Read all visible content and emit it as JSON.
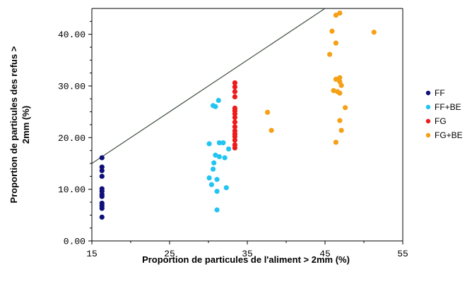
{
  "chart_data": {
    "type": "scatter",
    "title": "",
    "xlabel": "Proportion de particules de l'aliment > 2mm (%)",
    "ylabel_lines": [
      "Proportion de particules des refus >",
      "2mm (%)"
    ],
    "xlim": [
      15,
      55
    ],
    "ylim": [
      0,
      45
    ],
    "x_ticks": [
      15,
      25,
      35,
      45,
      55
    ],
    "x_tick_labels": [
      "15",
      "25",
      "35",
      "45",
      "55"
    ],
    "y_ticks": [
      0,
      10,
      20,
      30,
      40
    ],
    "y_tick_labels": [
      "0.00",
      "10.00",
      "20.00",
      "30.00",
      "40.00"
    ],
    "grid": false,
    "legend_position": "right",
    "reference_line": {
      "type": "y=x",
      "from": [
        15,
        15
      ],
      "to": [
        45,
        45
      ],
      "color": "#4b5a4b"
    },
    "series": [
      {
        "name": "FF",
        "color": "#10107a",
        "points": [
          [
            16.3,
            16.1
          ],
          [
            16.3,
            14.3
          ],
          [
            16.3,
            13.6
          ],
          [
            16.3,
            12.5
          ],
          [
            16.3,
            10.1
          ],
          [
            16.3,
            9.6
          ],
          [
            16.3,
            9.0
          ],
          [
            16.3,
            8.6
          ],
          [
            16.3,
            7.3
          ],
          [
            16.3,
            6.8
          ],
          [
            16.3,
            6.3
          ],
          [
            16.3,
            4.6
          ]
        ]
      },
      {
        "name": "FF+BE",
        "color": "#22c4f2",
        "points": [
          [
            31.3,
            27.2
          ],
          [
            30.9,
            26.0
          ],
          [
            30.6,
            26.2
          ],
          [
            30.1,
            18.8
          ],
          [
            31.4,
            19.0
          ],
          [
            31.9,
            19.0
          ],
          [
            32.6,
            17.8
          ],
          [
            30.9,
            16.6
          ],
          [
            31.4,
            16.3
          ],
          [
            32.1,
            16.1
          ],
          [
            30.7,
            15.1
          ],
          [
            30.6,
            13.9
          ],
          [
            30.1,
            12.2
          ],
          [
            31.1,
            11.9
          ],
          [
            30.4,
            10.9
          ],
          [
            32.3,
            10.3
          ],
          [
            31.1,
            9.6
          ],
          [
            31.1,
            6.0
          ]
        ]
      },
      {
        "name": "FG",
        "color": "#f01a1a",
        "points": [
          [
            33.4,
            30.6
          ],
          [
            33.4,
            29.8
          ],
          [
            33.4,
            28.9
          ],
          [
            33.4,
            27.9
          ],
          [
            33.4,
            25.7
          ],
          [
            33.4,
            25.2
          ],
          [
            33.4,
            24.6
          ],
          [
            33.4,
            23.9
          ],
          [
            33.4,
            23.0
          ],
          [
            33.4,
            22.1
          ],
          [
            33.4,
            21.3
          ],
          [
            33.4,
            20.7
          ],
          [
            33.4,
            20.2
          ],
          [
            33.4,
            19.5
          ],
          [
            33.4,
            18.6
          ],
          [
            33.4,
            18.0
          ]
        ]
      },
      {
        "name": "FG+BE",
        "color": "#f5a015",
        "points": [
          [
            46.4,
            43.7
          ],
          [
            46.9,
            44.1
          ],
          [
            45.9,
            40.6
          ],
          [
            46.4,
            38.3
          ],
          [
            51.3,
            40.4
          ],
          [
            45.6,
            36.1
          ],
          [
            46.4,
            31.3
          ],
          [
            46.9,
            31.6
          ],
          [
            46.9,
            30.8
          ],
          [
            47.1,
            30.1
          ],
          [
            46.1,
            29.1
          ],
          [
            46.6,
            28.9
          ],
          [
            46.9,
            28.6
          ],
          [
            47.6,
            25.8
          ],
          [
            46.9,
            23.3
          ],
          [
            47.1,
            21.4
          ],
          [
            46.4,
            19.1
          ],
          [
            37.6,
            24.9
          ],
          [
            38.1,
            21.4
          ]
        ]
      }
    ]
  }
}
